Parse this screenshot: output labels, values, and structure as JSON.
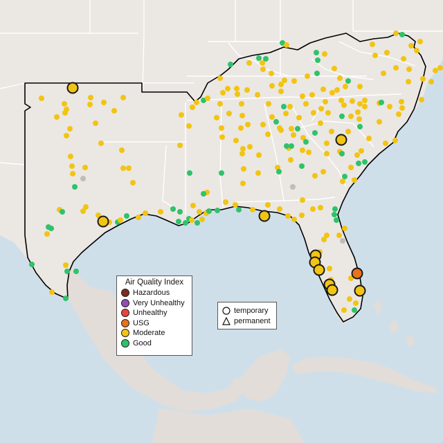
{
  "aqi_legend": {
    "title": "Air Quality Index",
    "levels": [
      {
        "label": "Hazardous",
        "color": "#7e2a1f"
      },
      {
        "label": "Very Unhealthy",
        "color": "#8f4fb4"
      },
      {
        "label": "Unhealthy",
        "color": "#e8453c"
      },
      {
        "label": "USG",
        "color": "#e8731a"
      },
      {
        "label": "Moderate",
        "color": "#f2c413"
      },
      {
        "label": "Good",
        "color": "#2fc26a"
      }
    ]
  },
  "type_legend": {
    "temporary": "temporary",
    "permanent": "permanent"
  },
  "colors": {
    "water": "#cfdfea",
    "land": "#ebe7e3",
    "land_outside": "#e2ddd8",
    "state_border": "#ffffff",
    "region_outline": "#000000",
    "no_data": "#bdbdbd"
  }
}
